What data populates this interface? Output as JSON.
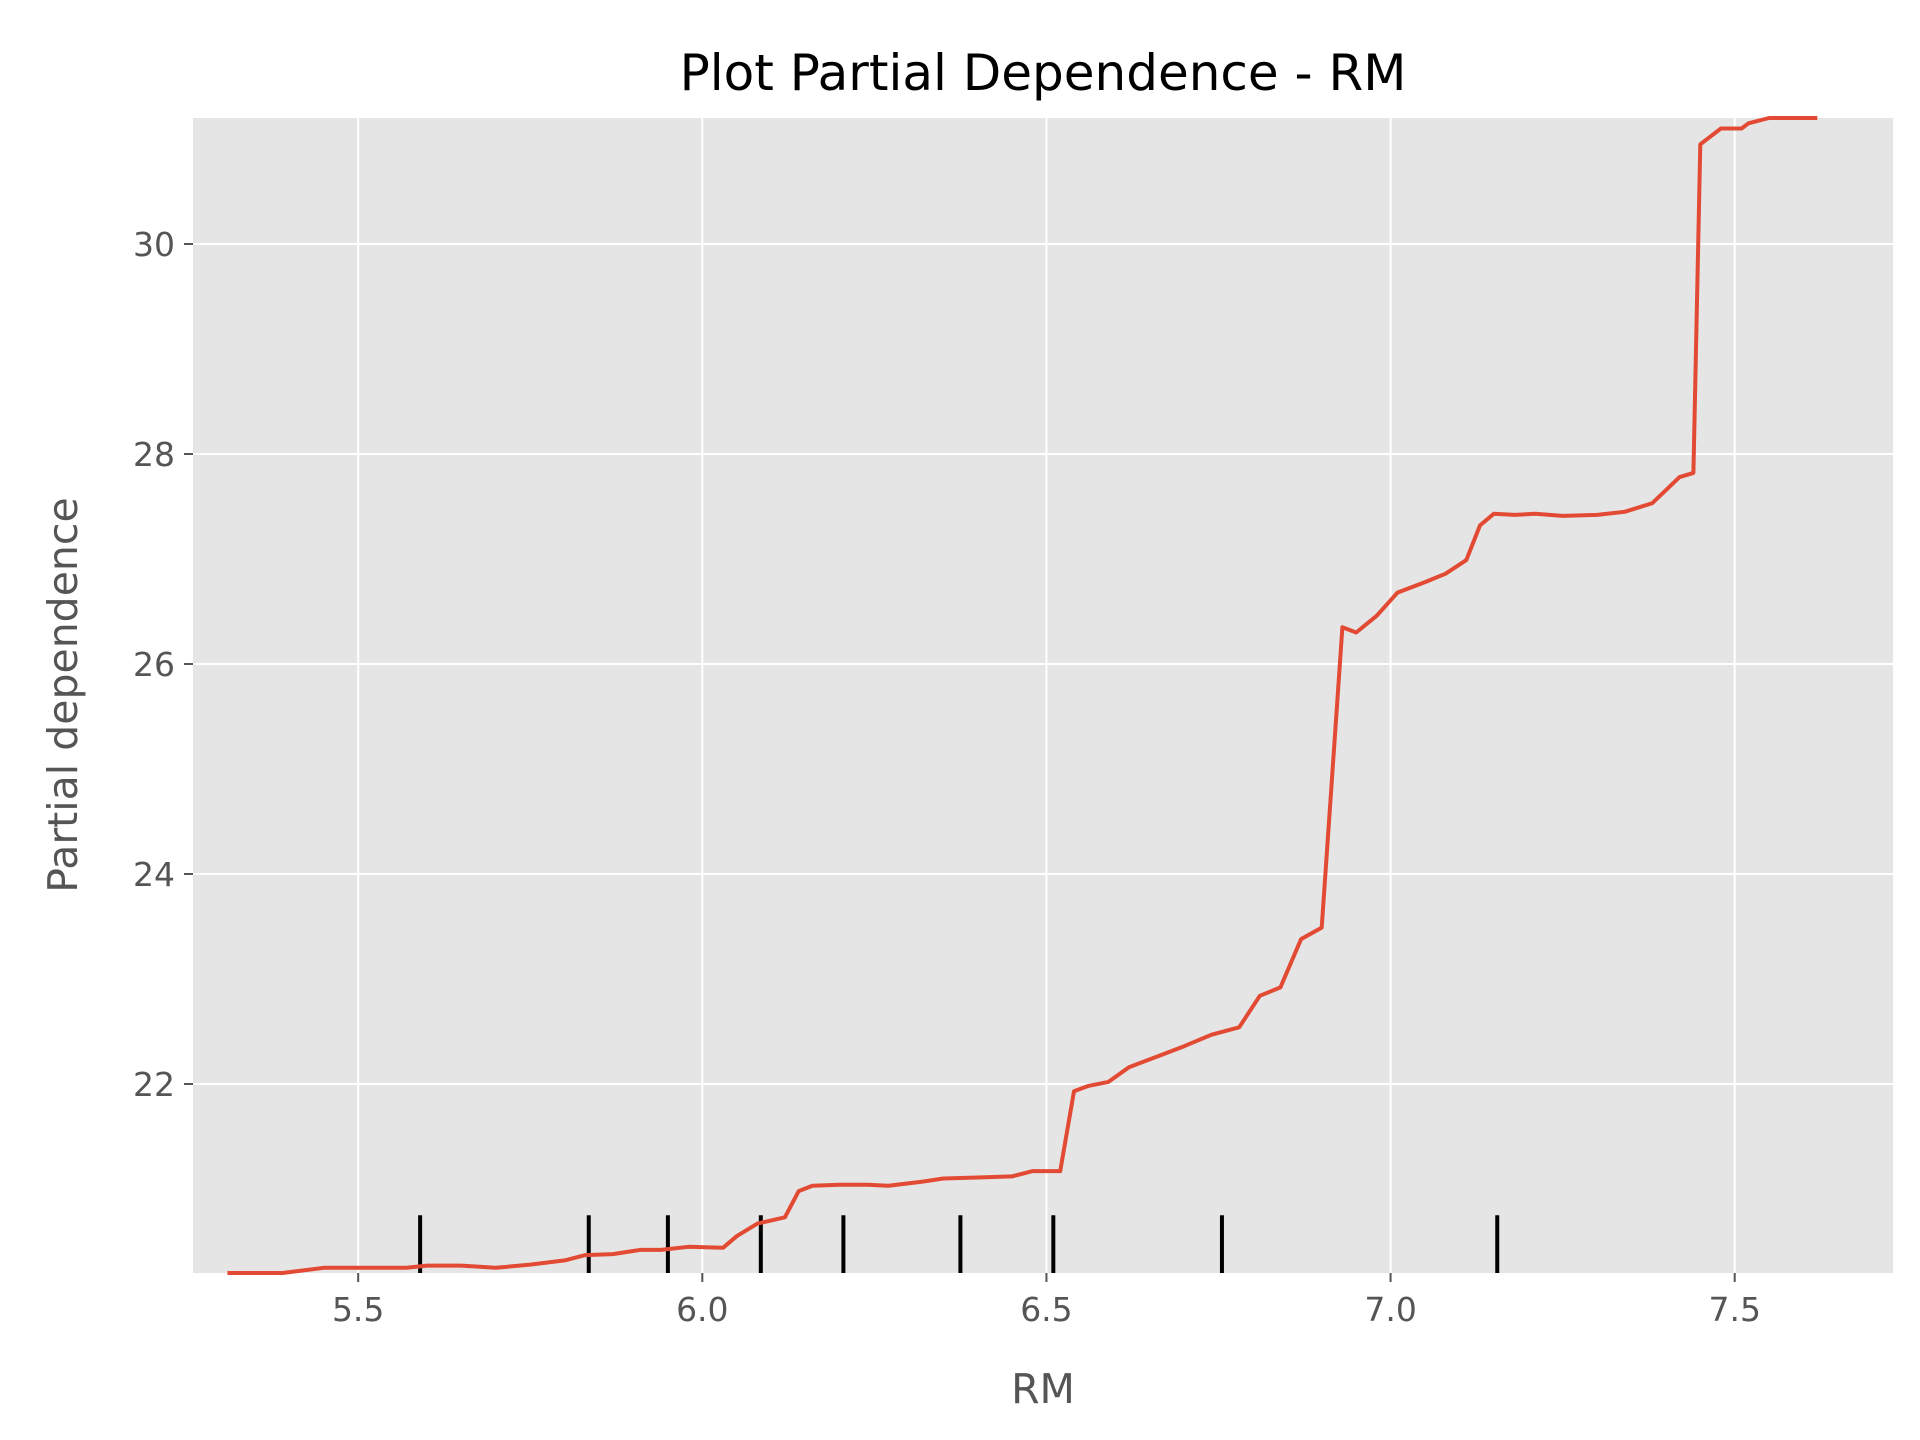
{
  "chart_data": {
    "type": "line",
    "title": "Plot Partial Dependence - RM",
    "xlabel": "RM",
    "ylabel": "Partial dependence",
    "xlim": [
      5.26,
      7.73
    ],
    "ylim": [
      20.2,
      31.2
    ],
    "xticks": [
      5.5,
      6.0,
      6.5,
      7.0,
      7.5
    ],
    "xtick_labels": [
      "5.5",
      "6.0",
      "6.5",
      "7.0",
      "7.5"
    ],
    "yticks": [
      22,
      24,
      26,
      28,
      30
    ],
    "ytick_labels": [
      "22",
      "24",
      "26",
      "28",
      "30"
    ],
    "grid": true,
    "style": "ggplot",
    "colors": {
      "plot_background": "#e5e5e5",
      "grid": "#ffffff",
      "line": "#e24a33",
      "deciles": "#000000",
      "tick": "#555555"
    },
    "series": [
      {
        "x": [
          5.31,
          5.39,
          5.45,
          5.5,
          5.57,
          5.6,
          5.65,
          5.7,
          5.75,
          5.8,
          5.83,
          5.87,
          5.91,
          5.94,
          5.98,
          6.03,
          6.05,
          6.08,
          6.12,
          6.14,
          6.16,
          6.2,
          6.24,
          6.27,
          6.32,
          6.35,
          6.4,
          6.45,
          6.48,
          6.52,
          6.54,
          6.56,
          6.59,
          6.62,
          6.66,
          6.7,
          6.74,
          6.78,
          6.81,
          6.84,
          6.87,
          6.9,
          6.93,
          6.95,
          6.98,
          7.01,
          7.05,
          7.08,
          7.11,
          7.13,
          7.15,
          7.18,
          7.21,
          7.25,
          7.3,
          7.34,
          7.38,
          7.42,
          7.44,
          7.45,
          7.48,
          7.51,
          7.52,
          7.55,
          7.62
        ],
        "y": [
          20.2,
          20.2,
          20.25,
          20.25,
          20.25,
          20.27,
          20.27,
          20.25,
          20.28,
          20.32,
          20.37,
          20.38,
          20.42,
          20.42,
          20.45,
          20.44,
          20.55,
          20.67,
          20.73,
          20.98,
          21.03,
          21.04,
          21.04,
          21.03,
          21.07,
          21.1,
          21.11,
          21.12,
          21.17,
          21.17,
          21.93,
          21.98,
          22.02,
          22.16,
          22.26,
          22.36,
          22.47,
          22.54,
          22.84,
          22.92,
          23.38,
          23.49,
          26.35,
          26.3,
          26.46,
          26.68,
          26.78,
          26.86,
          26.99,
          27.32,
          27.43,
          27.42,
          27.43,
          27.41,
          27.42,
          27.45,
          27.53,
          27.78,
          27.82,
          30.95,
          31.1,
          31.1,
          31.15,
          31.2,
          31.2
        ]
      }
    ],
    "decile_marks": [
      5.59,
      5.835,
      5.95,
      6.085,
      6.205,
      6.375,
      6.51,
      6.755,
      7.155
    ]
  }
}
